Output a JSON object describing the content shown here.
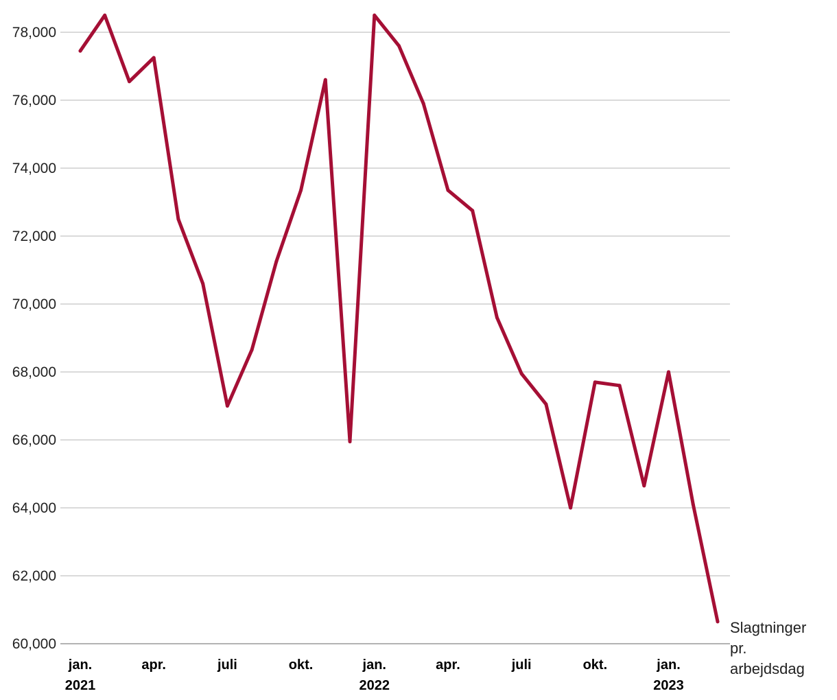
{
  "chart_data": {
    "type": "line",
    "title": "",
    "xlabel": "",
    "ylabel": "",
    "ylim": [
      60000,
      78000
    ],
    "yticks": [
      60000,
      62000,
      64000,
      66000,
      68000,
      70000,
      72000,
      74000,
      76000,
      78000
    ],
    "ytick_labels": [
      "60,000",
      "62,000",
      "64,000",
      "66,000",
      "68,000",
      "70,000",
      "72,000",
      "74,000",
      "76,000",
      "78,000"
    ],
    "grid": true,
    "x_ticks": [
      {
        "month": "2021-01",
        "line1": "jan.",
        "line2": "2021"
      },
      {
        "month": "2021-04",
        "line1": "apr.",
        "line2": ""
      },
      {
        "month": "2021-07",
        "line1": "juli",
        "line2": ""
      },
      {
        "month": "2021-10",
        "line1": "okt.",
        "line2": ""
      },
      {
        "month": "2022-01",
        "line1": "jan.",
        "line2": "2022"
      },
      {
        "month": "2022-04",
        "line1": "apr.",
        "line2": ""
      },
      {
        "month": "2022-07",
        "line1": "juli",
        "line2": ""
      },
      {
        "month": "2022-10",
        "line1": "okt.",
        "line2": ""
      },
      {
        "month": "2023-01",
        "line1": "jan.",
        "line2": "2023"
      }
    ],
    "series": [
      {
        "name": "Slagtninger pr. arbejdsdag",
        "label_lines": [
          "Slagtninger",
          "pr.",
          "arbejdsdag"
        ],
        "color": "#a50f35",
        "x": [
          "2021-01",
          "2021-02",
          "2021-03",
          "2021-04",
          "2021-05",
          "2021-06",
          "2021-07",
          "2021-08",
          "2021-09",
          "2021-10",
          "2021-11",
          "2021-12",
          "2022-01",
          "2022-02",
          "2022-03",
          "2022-04",
          "2022-05",
          "2022-06",
          "2022-07",
          "2022-08",
          "2022-09",
          "2022-10",
          "2022-11",
          "2022-12",
          "2023-01",
          "2023-02",
          "2023-03"
        ],
        "values": [
          77450,
          78500,
          76550,
          77250,
          72500,
          70600,
          67000,
          68650,
          71250,
          73350,
          76600,
          65950,
          78500,
          77600,
          75900,
          73350,
          72750,
          69600,
          67950,
          67050,
          64000,
          67700,
          67600,
          64650,
          68000,
          64100,
          60650
        ]
      }
    ]
  }
}
